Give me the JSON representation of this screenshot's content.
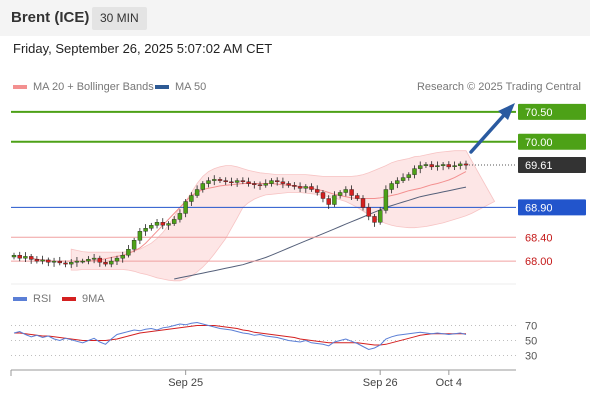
{
  "header": {
    "instrument": "Brent (ICE)",
    "timeframe": "30 MIN",
    "datetime": "Friday, September 26, 2025 5:07:02 AM CET"
  },
  "legend": {
    "ma20_label": "MA 20 + Bollinger Bands",
    "ma50_label": "MA 50",
    "copyright": "Research © 2025 Trading Central"
  },
  "rsi_legend": {
    "rsi_label": "RSI",
    "ma_label": "9MA"
  },
  "colors": {
    "resistance": "#4da117",
    "support": "#f0a0a0",
    "pivot": "#2255cc",
    "price_badge": "#333333",
    "arrow": "#2a5aa0",
    "candle_up": "#4da117",
    "candle_down": "#d42020",
    "ma20": "#f39090",
    "ma50": "#55607a",
    "band_fill": "#fde2e2",
    "rsi_line": "#5b7fd6",
    "rsi_ma": "#d42020"
  },
  "chart_data": [
    {
      "type": "candlestick",
      "title": "Brent (ICE)",
      "ylim": [
        67.6,
        70.7
      ],
      "levels": [
        {
          "value": 70.5,
          "label": "70.50",
          "kind": "resistance"
        },
        {
          "value": 70.0,
          "label": "70.00",
          "kind": "resistance"
        },
        {
          "value": 69.61,
          "label": "69.61",
          "kind": "last_price"
        },
        {
          "value": 68.9,
          "label": "68.90",
          "kind": "pivot"
        },
        {
          "value": 68.4,
          "label": "68.40",
          "kind": "support"
        },
        {
          "value": 68.0,
          "label": "68.00",
          "kind": "support"
        }
      ],
      "x_tick_labels": [
        "Sep 25",
        "Sep 26",
        "Oct 4"
      ],
      "x_tick_positions": [
        30,
        64,
        76
      ],
      "close": [
        68.1,
        68.05,
        68.08,
        68.03,
        68.0,
        68.02,
        67.98,
        68.0,
        67.97,
        67.95,
        67.98,
        68.0,
        68.0,
        68.03,
        68.05,
        67.98,
        67.95,
        68.0,
        68.05,
        68.1,
        68.2,
        68.35,
        68.5,
        68.55,
        68.6,
        68.65,
        68.6,
        68.63,
        68.7,
        68.8,
        69.0,
        69.1,
        69.2,
        69.3,
        69.35,
        69.37,
        69.35,
        69.33,
        69.32,
        69.35,
        69.33,
        69.3,
        69.28,
        69.27,
        69.3,
        69.35,
        69.33,
        69.3,
        69.27,
        69.25,
        69.22,
        69.25,
        69.2,
        69.15,
        69.05,
        68.95,
        69.1,
        69.15,
        69.2,
        69.1,
        69.05,
        68.9,
        68.75,
        68.65,
        68.85,
        69.2,
        69.3,
        69.35,
        69.4,
        69.45,
        69.55,
        69.6,
        69.62,
        69.58,
        69.6,
        69.62,
        69.58,
        69.6,
        69.63,
        69.61
      ],
      "ma20": [
        68.05,
        68.03,
        68.02,
        68.01,
        68.0,
        68.0,
        68.0,
        68.0,
        68.0,
        68.0,
        68.0,
        68.01,
        68.02,
        68.04,
        68.06,
        68.08,
        68.1,
        68.13,
        68.17,
        68.22,
        68.3,
        68.4,
        68.5,
        68.6,
        68.7,
        68.8,
        68.9,
        69.0,
        69.1,
        69.15,
        69.2,
        69.22,
        69.24,
        69.26,
        69.27,
        69.28,
        69.29,
        69.3,
        69.3,
        69.3,
        69.3,
        69.3,
        69.3,
        69.29,
        69.28,
        69.27,
        69.26,
        69.25,
        69.24,
        69.22,
        69.2,
        69.18,
        69.15,
        69.12,
        69.1,
        69.08,
        69.06,
        69.05,
        69.05,
        69.05,
        69.05,
        69.06,
        69.08,
        69.1,
        69.12,
        69.15,
        69.18,
        69.2,
        69.22,
        69.25,
        69.28,
        69.3,
        69.33,
        69.36,
        69.4,
        69.45,
        69.5
      ],
      "bb_upper": [
        68.2,
        68.18,
        68.16,
        68.15,
        68.15,
        68.15,
        68.15,
        68.15,
        68.15,
        68.15,
        68.16,
        68.18,
        68.2,
        68.25,
        68.3,
        68.38,
        68.48,
        68.6,
        68.75,
        68.9,
        69.0,
        69.15,
        69.3,
        69.42,
        69.5,
        69.55,
        69.58,
        69.6,
        69.6,
        69.58,
        69.55,
        69.52,
        69.5,
        69.48,
        69.47,
        69.46,
        69.45,
        69.45,
        69.45,
        69.45,
        69.45,
        69.45,
        69.44,
        69.43,
        69.42,
        69.42,
        69.42,
        69.42,
        69.42,
        69.42,
        69.43,
        69.45,
        69.48,
        69.52,
        69.56,
        69.6,
        69.65,
        69.68,
        69.7,
        69.72,
        69.75,
        69.76,
        69.78,
        69.8,
        69.82,
        69.83,
        69.84,
        69.85,
        69.85,
        69.85
      ],
      "bb_lower": [
        67.85,
        67.85,
        67.86,
        67.86,
        67.86,
        67.86,
        67.86,
        67.86,
        67.86,
        67.86,
        67.85,
        67.83,
        67.8,
        67.78,
        67.75,
        67.72,
        67.7,
        67.68,
        67.67,
        67.67,
        67.7,
        67.75,
        67.82,
        67.9,
        68.0,
        68.12,
        68.25,
        68.38,
        68.55,
        68.72,
        68.9,
        68.98,
        69.04,
        69.08,
        69.11,
        69.12,
        69.13,
        69.14,
        69.15,
        69.15,
        69.15,
        69.14,
        69.13,
        69.12,
        69.1,
        69.08,
        69.06,
        69.03,
        69.0,
        68.95,
        68.9,
        68.84,
        68.78,
        68.72,
        68.67,
        68.63,
        68.6,
        68.58,
        68.57,
        68.56,
        68.56,
        68.57,
        68.58,
        68.6,
        68.62,
        68.64,
        68.67,
        68.7,
        68.73,
        68.76,
        68.8,
        68.85,
        68.9,
        68.95,
        69.0
      ],
      "ma50": [
        67.7,
        67.72,
        67.74,
        67.76,
        67.78,
        67.8,
        67.82,
        67.84,
        67.86,
        67.88,
        67.9,
        67.92,
        67.94,
        67.97,
        68.0,
        68.03,
        68.06,
        68.1,
        68.14,
        68.18,
        68.22,
        68.26,
        68.3,
        68.34,
        68.38,
        68.42,
        68.46,
        68.5,
        68.54,
        68.58,
        68.62,
        68.66,
        68.7,
        68.74,
        68.78,
        68.82,
        68.86,
        68.9,
        68.93,
        68.96,
        68.99,
        69.02,
        69.05,
        69.08,
        69.1,
        69.12,
        69.14,
        69.16,
        69.18,
        69.2,
        69.22,
        69.24
      ]
    },
    {
      "type": "line",
      "title": "RSI",
      "ylim": [
        20,
        80
      ],
      "y_tick_labels": [
        "70",
        "50",
        "30"
      ],
      "rsi": [
        60,
        62,
        58,
        55,
        57,
        54,
        56,
        52,
        50,
        53,
        51,
        49,
        47,
        50,
        53,
        48,
        45,
        52,
        58,
        60,
        62,
        64,
        63,
        65,
        66,
        64,
        67,
        68,
        70,
        72,
        71,
        73,
        74,
        72,
        70,
        68,
        66,
        65,
        64,
        62,
        60,
        59,
        57,
        58,
        56,
        55,
        54,
        52,
        50,
        49,
        48,
        50,
        47,
        46,
        45,
        43,
        48,
        50,
        52,
        49,
        46,
        42,
        38,
        40,
        44,
        52,
        55,
        57,
        58,
        59,
        60,
        61,
        60,
        59,
        60,
        59,
        58,
        59,
        60,
        58
      ],
      "ma9": [
        60,
        60,
        59,
        58,
        57,
        56,
        56,
        55,
        54,
        53,
        52,
        51,
        50,
        50,
        50,
        50,
        50,
        51,
        52,
        54,
        56,
        58,
        60,
        61,
        62,
        63,
        64,
        65,
        66,
        67,
        68,
        69,
        70,
        70,
        70,
        70,
        69,
        68,
        67,
        66,
        64,
        63,
        61,
        60,
        59,
        58,
        57,
        56,
        55,
        54,
        52,
        51,
        50,
        49,
        48,
        47,
        47,
        47,
        47,
        47,
        47,
        46,
        45,
        44,
        44,
        45,
        47,
        49,
        51,
        53,
        55,
        57,
        58,
        59,
        59,
        59,
        59,
        59,
        59,
        59
      ]
    }
  ]
}
